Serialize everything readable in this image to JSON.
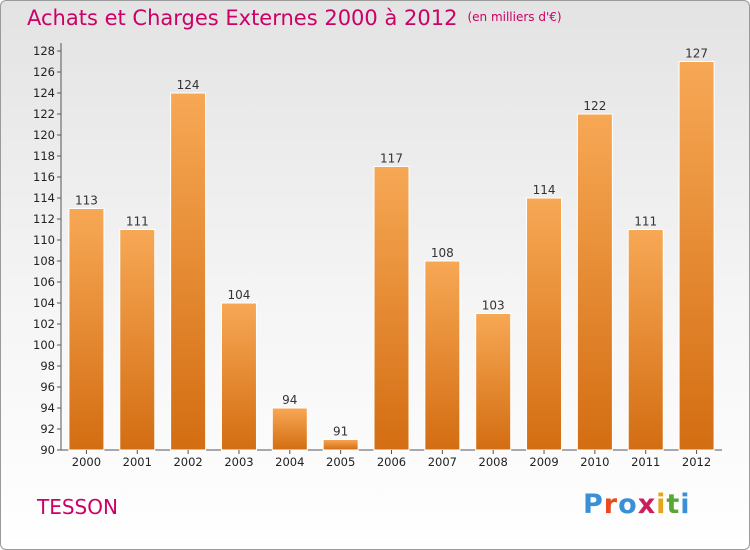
{
  "title": {
    "main": "Achats et Charges Externes 2000 à 2012",
    "unit": "(en milliers d'€)"
  },
  "place": "TESSON",
  "logo": {
    "letters": [
      "P",
      "r",
      "o",
      "x",
      "i",
      "t",
      "i"
    ],
    "colors": [
      "#3b8fd4",
      "#e94a1f",
      "#3b8fd4",
      "#c8205e",
      "#e5a61c",
      "#58a834",
      "#3b8fd4"
    ]
  },
  "colors": {
    "bar_light": "#f7a855",
    "bar_dark": "#d36d12",
    "text_accent": "#cc0066"
  },
  "chart_data": {
    "type": "bar",
    "categories": [
      "2000",
      "2001",
      "2002",
      "2003",
      "2004",
      "2005",
      "2006",
      "2007",
      "2008",
      "2009",
      "2010",
      "2011",
      "2012"
    ],
    "values": [
      113,
      111,
      124,
      104,
      94,
      91,
      117,
      108,
      103,
      114,
      122,
      111,
      127
    ],
    "ylim": [
      90,
      128
    ],
    "yticks": [
      90,
      92,
      94,
      96,
      98,
      100,
      102,
      104,
      106,
      108,
      110,
      112,
      114,
      116,
      118,
      120,
      122,
      124,
      126,
      128
    ],
    "grid": false
  }
}
